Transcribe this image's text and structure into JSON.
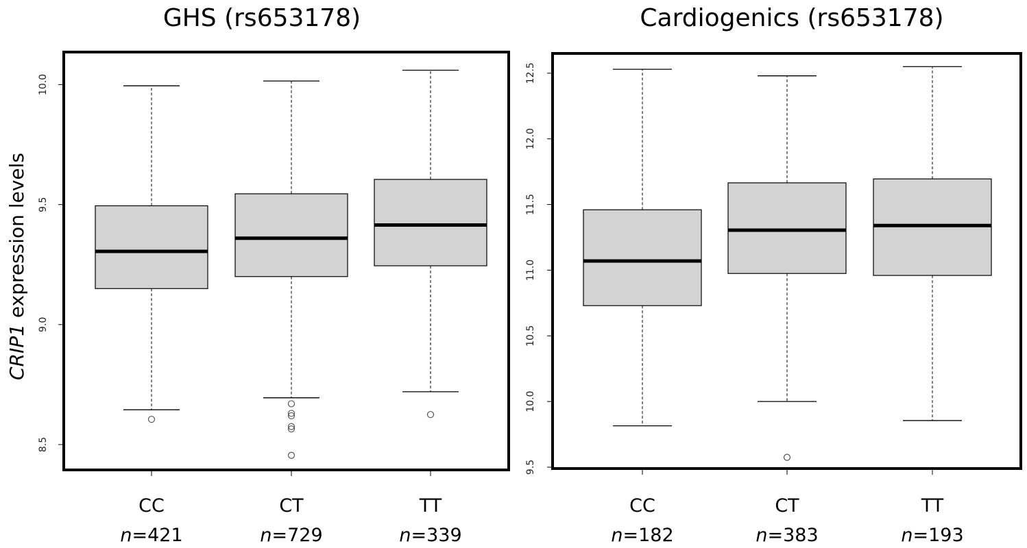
{
  "chart_data": [
    {
      "type": "box",
      "title": "GHS  (rs653178)",
      "ylabel_italic": "CRIP1",
      "ylabel_rest": " expression levels",
      "ylim": [
        8.4,
        10.13
      ],
      "yticks": [
        8.5,
        9.0,
        9.5,
        10.0
      ],
      "ytick_labels": [
        "8.5",
        "9.0",
        "9.5",
        "10.0"
      ],
      "categories": [
        "CC",
        "CT",
        "TT"
      ],
      "n_prefix": "n",
      "n_labels": [
        "=421",
        "=729",
        "=339"
      ],
      "boxes": [
        {
          "whisker_low": 8.645,
          "q1": 9.15,
          "median": 9.305,
          "q3": 9.495,
          "whisker_high": 9.995,
          "outliers": [
            8.605
          ]
        },
        {
          "whisker_low": 8.695,
          "q1": 9.2,
          "median": 9.36,
          "q3": 9.545,
          "whisker_high": 10.015,
          "outliers": [
            8.67,
            8.63,
            8.62,
            8.575,
            8.565,
            8.455
          ]
        },
        {
          "whisker_low": 8.72,
          "q1": 9.245,
          "median": 9.415,
          "q3": 9.605,
          "whisker_high": 10.06,
          "outliers": [
            8.625
          ]
        }
      ],
      "box_fill": "#d3d3d3",
      "grid": false
    },
    {
      "type": "box",
      "title": "Cardiogenics (rs653178)",
      "ylim": [
        9.5,
        12.64
      ],
      "yticks": [
        9.5,
        10.0,
        10.5,
        11.0,
        11.5,
        12.0,
        12.5
      ],
      "ytick_labels": [
        "9.5",
        "10.0",
        "10.5",
        "11.0",
        "11.5",
        "12.0",
        "12.5"
      ],
      "categories": [
        "CC",
        "CT",
        "TT"
      ],
      "n_prefix": "n",
      "n_labels": [
        "=182",
        "=383",
        "=193"
      ],
      "boxes": [
        {
          "whisker_low": 9.815,
          "q1": 10.73,
          "median": 11.07,
          "q3": 11.46,
          "whisker_high": 12.53,
          "outliers": []
        },
        {
          "whisker_low": 10.0,
          "q1": 10.975,
          "median": 11.305,
          "q3": 11.665,
          "whisker_high": 12.48,
          "outliers": [
            9.575
          ]
        },
        {
          "whisker_low": 9.855,
          "q1": 10.96,
          "median": 11.34,
          "q3": 11.695,
          "whisker_high": 12.55,
          "outliers": []
        }
      ],
      "box_fill": "#d3d3d3",
      "grid": false
    }
  ]
}
